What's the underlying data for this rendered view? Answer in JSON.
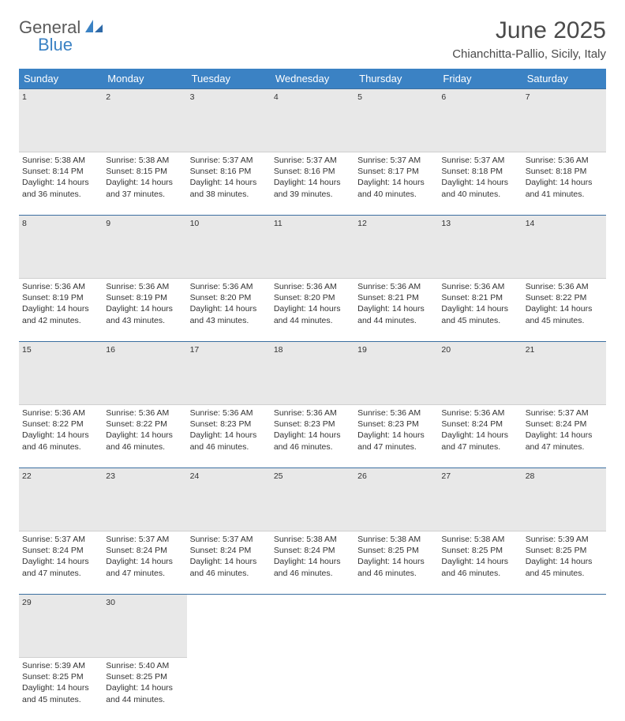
{
  "logo": {
    "part1": "General",
    "part2": "Blue"
  },
  "title": "June 2025",
  "location": "Chianchitta-Pallio, Sicily, Italy",
  "colors": {
    "header_bg": "#3b82c4",
    "header_text": "#ffffff",
    "daynum_bg": "#e8e8e8",
    "daynum_border_top": "#3b6fa0",
    "text": "#333333",
    "logo_gray": "#5a5a5a",
    "logo_blue": "#3b82c4"
  },
  "typography": {
    "title_fontsize": 30,
    "location_fontsize": 15,
    "dayheader_fontsize": 13,
    "daynum_fontsize": 12,
    "cell_fontsize": 10.5
  },
  "day_headers": [
    "Sunday",
    "Monday",
    "Tuesday",
    "Wednesday",
    "Thursday",
    "Friday",
    "Saturday"
  ],
  "weeks": [
    {
      "nums": [
        "1",
        "2",
        "3",
        "4",
        "5",
        "6",
        "7"
      ],
      "cells": [
        {
          "sunrise": "Sunrise: 5:38 AM",
          "sunset": "Sunset: 8:14 PM",
          "daylight": "Daylight: 14 hours and 36 minutes."
        },
        {
          "sunrise": "Sunrise: 5:38 AM",
          "sunset": "Sunset: 8:15 PM",
          "daylight": "Daylight: 14 hours and 37 minutes."
        },
        {
          "sunrise": "Sunrise: 5:37 AM",
          "sunset": "Sunset: 8:16 PM",
          "daylight": "Daylight: 14 hours and 38 minutes."
        },
        {
          "sunrise": "Sunrise: 5:37 AM",
          "sunset": "Sunset: 8:16 PM",
          "daylight": "Daylight: 14 hours and 39 minutes."
        },
        {
          "sunrise": "Sunrise: 5:37 AM",
          "sunset": "Sunset: 8:17 PM",
          "daylight": "Daylight: 14 hours and 40 minutes."
        },
        {
          "sunrise": "Sunrise: 5:37 AM",
          "sunset": "Sunset: 8:18 PM",
          "daylight": "Daylight: 14 hours and 40 minutes."
        },
        {
          "sunrise": "Sunrise: 5:36 AM",
          "sunset": "Sunset: 8:18 PM",
          "daylight": "Daylight: 14 hours and 41 minutes."
        }
      ]
    },
    {
      "nums": [
        "8",
        "9",
        "10",
        "11",
        "12",
        "13",
        "14"
      ],
      "cells": [
        {
          "sunrise": "Sunrise: 5:36 AM",
          "sunset": "Sunset: 8:19 PM",
          "daylight": "Daylight: 14 hours and 42 minutes."
        },
        {
          "sunrise": "Sunrise: 5:36 AM",
          "sunset": "Sunset: 8:19 PM",
          "daylight": "Daylight: 14 hours and 43 minutes."
        },
        {
          "sunrise": "Sunrise: 5:36 AM",
          "sunset": "Sunset: 8:20 PM",
          "daylight": "Daylight: 14 hours and 43 minutes."
        },
        {
          "sunrise": "Sunrise: 5:36 AM",
          "sunset": "Sunset: 8:20 PM",
          "daylight": "Daylight: 14 hours and 44 minutes."
        },
        {
          "sunrise": "Sunrise: 5:36 AM",
          "sunset": "Sunset: 8:21 PM",
          "daylight": "Daylight: 14 hours and 44 minutes."
        },
        {
          "sunrise": "Sunrise: 5:36 AM",
          "sunset": "Sunset: 8:21 PM",
          "daylight": "Daylight: 14 hours and 45 minutes."
        },
        {
          "sunrise": "Sunrise: 5:36 AM",
          "sunset": "Sunset: 8:22 PM",
          "daylight": "Daylight: 14 hours and 45 minutes."
        }
      ]
    },
    {
      "nums": [
        "15",
        "16",
        "17",
        "18",
        "19",
        "20",
        "21"
      ],
      "cells": [
        {
          "sunrise": "Sunrise: 5:36 AM",
          "sunset": "Sunset: 8:22 PM",
          "daylight": "Daylight: 14 hours and 46 minutes."
        },
        {
          "sunrise": "Sunrise: 5:36 AM",
          "sunset": "Sunset: 8:22 PM",
          "daylight": "Daylight: 14 hours and 46 minutes."
        },
        {
          "sunrise": "Sunrise: 5:36 AM",
          "sunset": "Sunset: 8:23 PM",
          "daylight": "Daylight: 14 hours and 46 minutes."
        },
        {
          "sunrise": "Sunrise: 5:36 AM",
          "sunset": "Sunset: 8:23 PM",
          "daylight": "Daylight: 14 hours and 46 minutes."
        },
        {
          "sunrise": "Sunrise: 5:36 AM",
          "sunset": "Sunset: 8:23 PM",
          "daylight": "Daylight: 14 hours and 47 minutes."
        },
        {
          "sunrise": "Sunrise: 5:36 AM",
          "sunset": "Sunset: 8:24 PM",
          "daylight": "Daylight: 14 hours and 47 minutes."
        },
        {
          "sunrise": "Sunrise: 5:37 AM",
          "sunset": "Sunset: 8:24 PM",
          "daylight": "Daylight: 14 hours and 47 minutes."
        }
      ]
    },
    {
      "nums": [
        "22",
        "23",
        "24",
        "25",
        "26",
        "27",
        "28"
      ],
      "cells": [
        {
          "sunrise": "Sunrise: 5:37 AM",
          "sunset": "Sunset: 8:24 PM",
          "daylight": "Daylight: 14 hours and 47 minutes."
        },
        {
          "sunrise": "Sunrise: 5:37 AM",
          "sunset": "Sunset: 8:24 PM",
          "daylight": "Daylight: 14 hours and 47 minutes."
        },
        {
          "sunrise": "Sunrise: 5:37 AM",
          "sunset": "Sunset: 8:24 PM",
          "daylight": "Daylight: 14 hours and 46 minutes."
        },
        {
          "sunrise": "Sunrise: 5:38 AM",
          "sunset": "Sunset: 8:24 PM",
          "daylight": "Daylight: 14 hours and 46 minutes."
        },
        {
          "sunrise": "Sunrise: 5:38 AM",
          "sunset": "Sunset: 8:25 PM",
          "daylight": "Daylight: 14 hours and 46 minutes."
        },
        {
          "sunrise": "Sunrise: 5:38 AM",
          "sunset": "Sunset: 8:25 PM",
          "daylight": "Daylight: 14 hours and 46 minutes."
        },
        {
          "sunrise": "Sunrise: 5:39 AM",
          "sunset": "Sunset: 8:25 PM",
          "daylight": "Daylight: 14 hours and 45 minutes."
        }
      ]
    },
    {
      "nums": [
        "29",
        "30",
        "",
        "",
        "",
        "",
        ""
      ],
      "cells": [
        {
          "sunrise": "Sunrise: 5:39 AM",
          "sunset": "Sunset: 8:25 PM",
          "daylight": "Daylight: 14 hours and 45 minutes."
        },
        {
          "sunrise": "Sunrise: 5:40 AM",
          "sunset": "Sunset: 8:25 PM",
          "daylight": "Daylight: 14 hours and 44 minutes."
        },
        null,
        null,
        null,
        null,
        null
      ]
    }
  ]
}
